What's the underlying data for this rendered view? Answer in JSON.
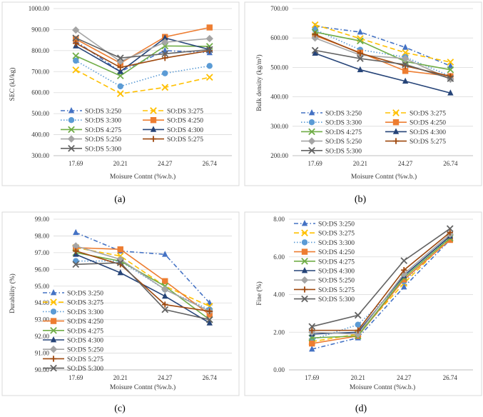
{
  "figure": {
    "x_categories": [
      "17.69",
      "20.21",
      "24.27",
      "26.74"
    ],
    "series_names": [
      "SO:DS 3:250",
      "SO:DS 3:275",
      "SO:DS 3:300",
      "SO:DS 4:250",
      "SO:DS 4:275",
      "SO:DS 4:300",
      "SO:DS 5:250",
      "SO:DS 5:275",
      "SO:DS 5:300"
    ],
    "series_colors": [
      "#4472C4",
      "#FFC000",
      "#5B9BD5",
      "#ED7D31",
      "#70AD47",
      "#264478",
      "#A5A5A5",
      "#9E480E",
      "#636363"
    ]
  },
  "chart_data": [
    {
      "id": "a",
      "type": "line",
      "caption": "(a)",
      "xlabel": "Moisure Contnt (%w.b.)",
      "ylabel": "SEC (kJ/kg)",
      "ylim": [
        300,
        1000
      ],
      "ytick_step": 100,
      "ytick_labels": [
        "300.00",
        "400.00",
        "500.00",
        "600.00",
        "700.00",
        "800.00",
        "900.00",
        "1000.00"
      ],
      "categories": [
        "17.69",
        "20.21",
        "24.27",
        "26.74"
      ],
      "legend_position": "lower-center, two columns",
      "series": [
        {
          "name": "SO:DS 3:250",
          "values": [
            845,
            700,
            800,
            790
          ]
        },
        {
          "name": "SO:DS 3:275",
          "values": [
            708,
            595,
            625,
            673
          ]
        },
        {
          "name": "SO:DS 3:300",
          "values": [
            752,
            630,
            692,
            727
          ]
        },
        {
          "name": "SO:DS 4:250",
          "values": [
            855,
            740,
            865,
            910
          ]
        },
        {
          "name": "SO:DS 4:275",
          "values": [
            775,
            680,
            822,
            820
          ]
        },
        {
          "name": "SO:DS 4:300",
          "values": [
            822,
            700,
            860,
            805
          ]
        },
        {
          "name": "SO:DS 5:250",
          "values": [
            898,
            748,
            840,
            857
          ]
        },
        {
          "name": "SO:DS 5:275",
          "values": [
            835,
            720,
            765,
            800
          ]
        },
        {
          "name": "SO:DS 5:300",
          "values": [
            860,
            765,
            785,
            805
          ]
        }
      ]
    },
    {
      "id": "b",
      "type": "line",
      "caption": "(b)",
      "xlabel": "Moisure Contnt (%w.b.)",
      "ylabel": "Bulk density (kg/m³)",
      "ylim": [
        200,
        700
      ],
      "ytick_step": 100,
      "ytick_labels": [
        "200.00",
        "300.00",
        "400.00",
        "500.00",
        "600.00",
        "700.00"
      ],
      "categories": [
        "17.69",
        "20.21",
        "24.27",
        "26.74"
      ],
      "legend_position": "lower-center, two columns",
      "series": [
        {
          "name": "SO:DS 3:250",
          "values": [
            640,
            620,
            568,
            505
          ]
        },
        {
          "name": "SO:DS 3:275",
          "values": [
            645,
            598,
            550,
            518
          ]
        },
        {
          "name": "SO:DS 3:300",
          "values": [
            628,
            560,
            535,
            470
          ]
        },
        {
          "name": "SO:DS 4:250",
          "values": [
            608,
            550,
            488,
            470
          ]
        },
        {
          "name": "SO:DS 4:275",
          "values": [
            620,
            590,
            520,
            492
          ]
        },
        {
          "name": "SO:DS 4:300",
          "values": [
            548,
            492,
            453,
            413
          ]
        },
        {
          "name": "SO:DS 5:250",
          "values": [
            600,
            542,
            530,
            460
          ]
        },
        {
          "name": "SO:DS 5:275",
          "values": [
            612,
            548,
            505,
            470
          ]
        },
        {
          "name": "SO:DS 5:300",
          "values": [
            558,
            530,
            510,
            462
          ]
        }
      ]
    },
    {
      "id": "c",
      "type": "line",
      "caption": "(c)",
      "xlabel": "Moisure Contnt (%w.b.)",
      "ylabel": "Durability (%)",
      "ylim": [
        90,
        99
      ],
      "ytick_step": 1,
      "ytick_labels": [
        "90.00",
        "91.00",
        "92.00",
        "93.00",
        "94.00",
        "95.00",
        "96.00",
        "97.00",
        "98.00",
        "99.00"
      ],
      "categories": [
        "17.69",
        "20.21",
        "24.27",
        "26.74"
      ],
      "legend_position": "right of center, one column",
      "series": [
        {
          "name": "SO:DS 3:250",
          "values": [
            98.2,
            97.1,
            96.9,
            94.0
          ]
        },
        {
          "name": "SO:DS 3:275",
          "values": [
            97.3,
            96.8,
            95.0,
            93.8
          ]
        },
        {
          "name": "SO:DS 3:300",
          "values": [
            96.5,
            96.5,
            94.8,
            93.6
          ]
        },
        {
          "name": "SO:DS 4:250",
          "values": [
            97.3,
            97.2,
            95.3,
            93.3
          ]
        },
        {
          "name": "SO:DS 4:275",
          "values": [
            97.0,
            96.5,
            95.0,
            93.0
          ]
        },
        {
          "name": "SO:DS 4:300",
          "values": [
            96.9,
            95.8,
            94.4,
            92.8
          ]
        },
        {
          "name": "SO:DS 5:250",
          "values": [
            97.4,
            96.6,
            94.8,
            93.5
          ]
        },
        {
          "name": "SO:DS 5:275",
          "values": [
            97.1,
            96.3,
            93.9,
            93.5
          ]
        },
        {
          "name": "SO:DS 5:300",
          "values": [
            96.3,
            96.4,
            93.6,
            93.0
          ]
        }
      ]
    },
    {
      "id": "d",
      "type": "line",
      "caption": "(d)",
      "xlabel": "Moisure Contnt (%w.b.)",
      "ylabel": "Fine (%)",
      "ylim": [
        0,
        8
      ],
      "ytick_step": 2,
      "ytick_labels": [
        "0.00",
        "2.00",
        "4.00",
        "6.00",
        "8.00"
      ],
      "categories": [
        "17.69",
        "20.21",
        "24.27",
        "26.74"
      ],
      "legend_position": "top-left, one column",
      "series": [
        {
          "name": "SO:DS 3:250",
          "values": [
            1.1,
            1.7,
            4.4,
            6.9
          ]
        },
        {
          "name": "SO:DS 3:275",
          "values": [
            1.5,
            1.9,
            4.6,
            7.0
          ]
        },
        {
          "name": "SO:DS 3:300",
          "values": [
            1.6,
            2.4,
            4.7,
            7.1
          ]
        },
        {
          "name": "SO:DS 4:250",
          "values": [
            1.4,
            1.8,
            4.8,
            6.9
          ]
        },
        {
          "name": "SO:DS 4:275",
          "values": [
            1.7,
            1.8,
            4.9,
            7.0
          ]
        },
        {
          "name": "SO:DS 4:300",
          "values": [
            1.9,
            2.0,
            5.0,
            7.1
          ]
        },
        {
          "name": "SO:DS 5:250",
          "values": [
            2.0,
            1.9,
            5.1,
            7.2
          ]
        },
        {
          "name": "SO:DS 5:275",
          "values": [
            2.1,
            2.1,
            5.3,
            7.3
          ]
        },
        {
          "name": "SO:DS 5:300",
          "values": [
            2.3,
            2.9,
            5.8,
            7.5
          ]
        }
      ]
    }
  ]
}
